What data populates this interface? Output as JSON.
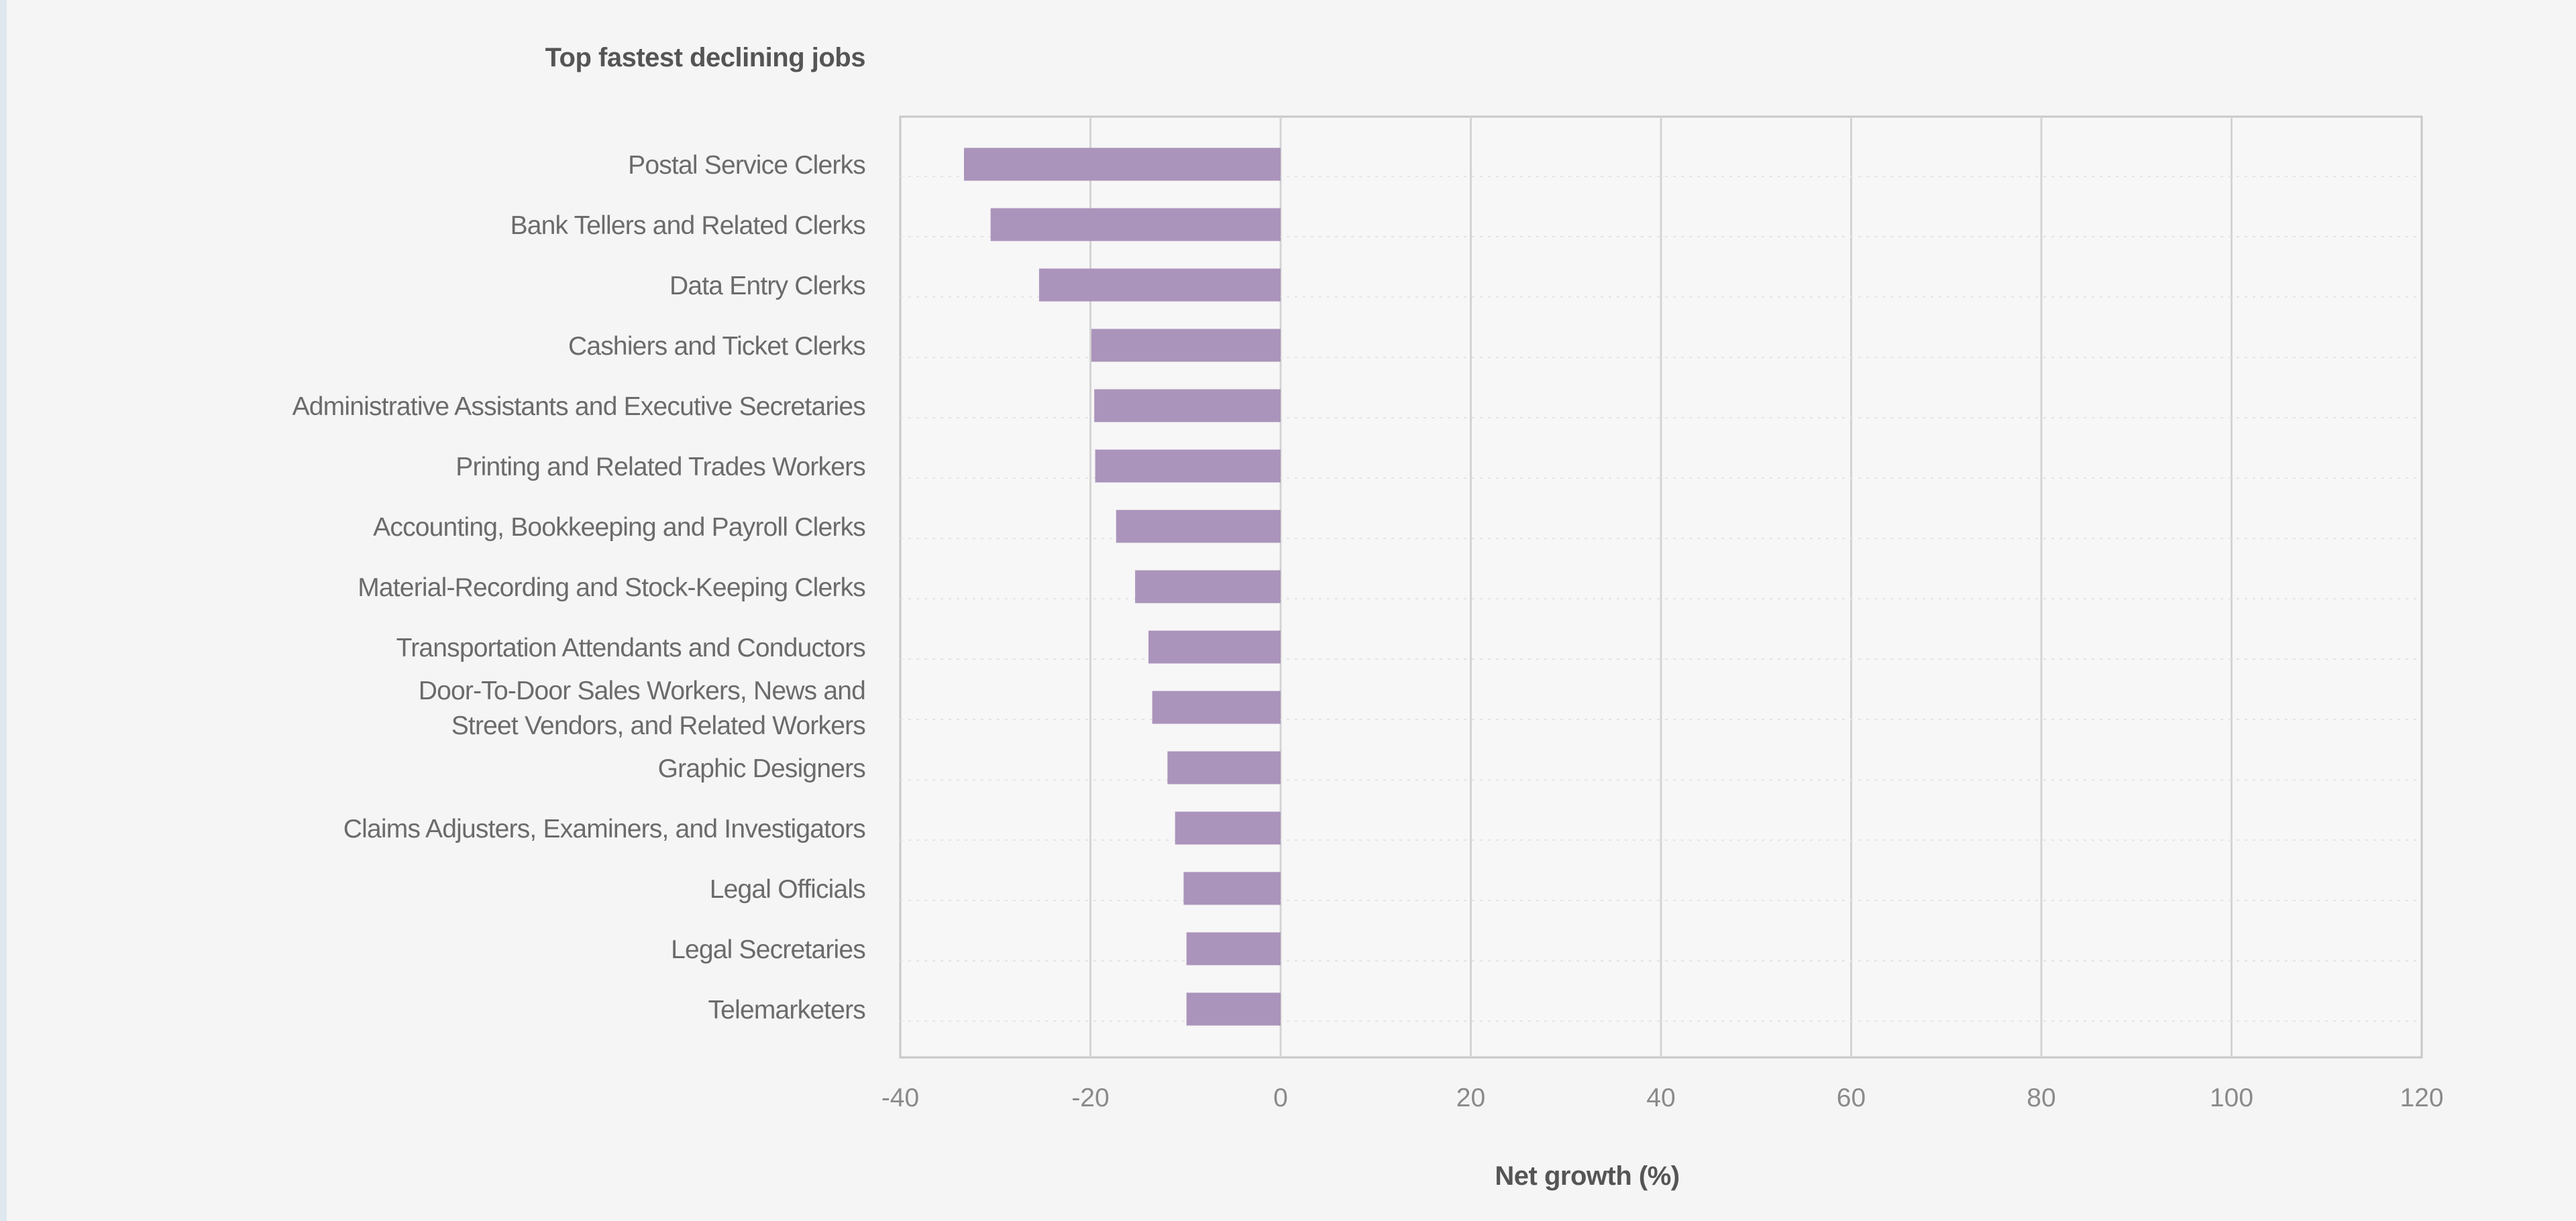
{
  "chart_data": {
    "type": "bar",
    "orientation": "horizontal",
    "title": "Top fastest declining jobs",
    "xlabel": "Net growth (%)",
    "ylabel": "",
    "xlim": [
      -40,
      120
    ],
    "xticks": [
      -40,
      -20,
      0,
      20,
      40,
      60,
      80,
      100,
      120
    ],
    "grid": true,
    "bar_color": "#ab94bb",
    "categories": [
      "Postal Service Clerks",
      "Bank Tellers and Related Clerks",
      "Data Entry Clerks",
      "Cashiers and Ticket Clerks",
      "Administrative Assistants and Executive Secretaries",
      "Printing and Related Trades Workers",
      "Accounting, Bookkeeping and Payroll Clerks",
      "Material-Recording and Stock-Keeping Clerks",
      "Transportation Attendants and Conductors",
      "Door-To-Door Sales Workers, News and|Street Vendors, and Related Workers",
      "Graphic Designers",
      "Claims Adjusters, Examiners, and Investigators",
      "Legal Officials",
      "Legal Secretaries",
      "Telemarketers"
    ],
    "values": [
      -33.3,
      -30.5,
      -25.4,
      -19.9,
      -19.6,
      -19.5,
      -17.3,
      -15.3,
      -13.9,
      -13.5,
      -11.9,
      -11.1,
      -10.2,
      -9.9,
      -9.9
    ]
  }
}
